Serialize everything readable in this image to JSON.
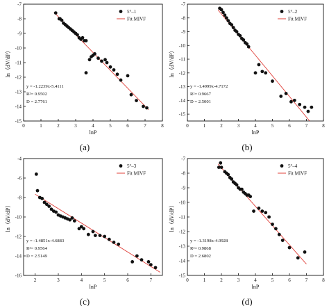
{
  "chart_data": [
    {
      "type": "scatter",
      "panel_label": "(a)",
      "xlabel": "lnP",
      "ylabel": "ln（dV/dP）",
      "xlim": [
        0,
        8
      ],
      "ylim": [
        -15,
        -7
      ],
      "x_ticks": [
        0,
        1,
        2,
        3,
        4,
        5,
        6,
        7,
        8
      ],
      "y_ticks": [
        -7,
        -8,
        -9,
        -10,
        -11,
        -12,
        -13,
        -14,
        -15
      ],
      "legend": {
        "position": "top-right",
        "points_label": "5°‒1",
        "fit_label": "Fit MIVF"
      },
      "fit": {
        "slope": -1.2239,
        "intercept": -5.4111,
        "x_range": [
          1.75,
          7.2
        ]
      },
      "annotations": [
        "y = -1.2239x-5.4111",
        "R²= 0.9502",
        "D = 2.7761"
      ],
      "series": [
        {
          "x": [
            1.85,
            2.05,
            2.1,
            2.2,
            2.3,
            2.4,
            2.5,
            2.6,
            2.7,
            2.8,
            2.9,
            3.0,
            3.1,
            3.2,
            3.3,
            3.4,
            3.5,
            3.6,
            3.6,
            3.8,
            3.9,
            4.0,
            4.1,
            4.3,
            4.5,
            4.7,
            4.8,
            5.0,
            5.2,
            5.4,
            5.6,
            6.0,
            6.2,
            6.5,
            6.9,
            7.1
          ],
          "y": [
            -7.6,
            -8.0,
            -8.0,
            -8.1,
            -8.3,
            -8.4,
            -8.5,
            -8.6,
            -8.7,
            -8.8,
            -8.9,
            -9.0,
            -9.1,
            -9.3,
            -9.4,
            -9.3,
            -9.5,
            -9.5,
            -11.7,
            -10.8,
            -10.6,
            -10.5,
            -10.4,
            -10.7,
            -10.9,
            -10.8,
            -11.0,
            -11.3,
            -11.5,
            -11.8,
            -12.2,
            -11.9,
            -13.2,
            -13.6,
            -14.0,
            -14.1
          ]
        }
      ]
    },
    {
      "type": "scatter",
      "panel_label": "(b)",
      "xlabel": "lnP",
      "ylabel": "ln（dV/dP）",
      "xlim": [
        0,
        8
      ],
      "ylim": [
        -15.5,
        -7
      ],
      "x_ticks": [
        0,
        1,
        2,
        3,
        4,
        5,
        6,
        7,
        8
      ],
      "y_ticks": [
        -7,
        -8,
        -9,
        -10,
        -11,
        -12,
        -13,
        -14,
        -15
      ],
      "legend": {
        "position": "top-right",
        "points_label": "5°‒2",
        "fit_label": "Fit MIVF"
      },
      "fit": {
        "slope": -1.4999,
        "intercept": -4.7172,
        "x_range": [
          1.8,
          7.2
        ]
      },
      "annotations": [
        "y = -1.4999x-4.7172",
        "R²= 0.9667",
        "D = 2.5001"
      ],
      "series": [
        {
          "x": [
            1.9,
            2.0,
            2.1,
            2.2,
            2.3,
            2.4,
            2.5,
            2.6,
            2.7,
            2.8,
            2.9,
            3.0,
            3.1,
            3.2,
            3.3,
            3.4,
            3.5,
            3.6,
            4.0,
            4.2,
            4.4,
            4.6,
            5.0,
            5.5,
            5.8,
            6.1,
            6.3,
            6.6,
            6.9,
            7.1,
            7.3
          ],
          "y": [
            -7.3,
            -7.4,
            -7.6,
            -7.8,
            -8.0,
            -8.2,
            -8.4,
            -8.5,
            -8.7,
            -8.9,
            -9.0,
            -9.2,
            -9.3,
            -9.5,
            -9.6,
            -9.8,
            -9.9,
            -10.1,
            -12.0,
            -11.4,
            -11.9,
            -12.0,
            -12.6,
            -13.7,
            -13.5,
            -14.1,
            -14.0,
            -14.3,
            -14.5,
            -14.8,
            -14.5
          ]
        }
      ]
    },
    {
      "type": "scatter",
      "panel_label": "(c)",
      "xlabel": "lnP",
      "ylabel": "ln（dV/dP）",
      "xlim": [
        1.5,
        7.5
      ],
      "ylim": [
        -16,
        -4
      ],
      "x_ticks": [
        2,
        3,
        4,
        5,
        6,
        7
      ],
      "y_ticks": [
        -4,
        -6,
        -8,
        -10,
        -12,
        -14,
        -16
      ],
      "legend": {
        "position": "top-right",
        "points_label": "5°‒3",
        "fit_label": "Fit MIVF"
      },
      "fit": {
        "slope": -1.4851,
        "intercept": -4.6883,
        "x_range": [
          2.0,
          7.4
        ]
      },
      "annotations": [
        "y = -1.4851x-4.6883",
        "R²= 0.9564",
        "D = 2.5149"
      ],
      "series": [
        {
          "x": [
            2.05,
            2.1,
            2.2,
            2.3,
            2.4,
            2.5,
            2.6,
            2.7,
            2.8,
            2.9,
            3.0,
            3.1,
            3.2,
            3.3,
            3.4,
            3.5,
            3.6,
            3.7,
            3.9,
            4.0,
            4.1,
            4.3,
            4.5,
            4.6,
            4.8,
            5.0,
            5.2,
            5.4,
            5.6,
            6.2,
            6.4,
            6.6,
            6.9,
            7.0,
            7.2
          ],
          "y": [
            -5.6,
            -7.3,
            -8.0,
            -8.1,
            -8.5,
            -8.7,
            -8.9,
            -9.2,
            -9.4,
            -9.5,
            -9.8,
            -9.9,
            -10.0,
            -10.1,
            -10.2,
            -10.3,
            -10.1,
            -10.4,
            -11.2,
            -11.0,
            -11.2,
            -11.8,
            -11.5,
            -11.9,
            -11.9,
            -12.0,
            -12.3,
            -12.6,
            -12.8,
            -14.6,
            -14.0,
            -14.4,
            -14.6,
            -14.9,
            -15.2
          ]
        }
      ]
    },
    {
      "type": "scatter",
      "panel_label": "(d)",
      "xlabel": "lnP",
      "ylabel": "ln（dV/dP）",
      "xlim": [
        0,
        8
      ],
      "ylim": [
        -15,
        -7
      ],
      "x_ticks": [
        0,
        1,
        2,
        3,
        4,
        5,
        6,
        7,
        8
      ],
      "y_ticks": [
        -7,
        -8,
        -9,
        -10,
        -11,
        -12,
        -13,
        -14,
        -15
      ],
      "legend": {
        "position": "top-right",
        "points_label": "5°‒4",
        "fit_label": "Fit MIVF"
      },
      "fit": {
        "slope": -1.3198,
        "intercept": -4.9928,
        "x_range": [
          1.8,
          7.0
        ]
      },
      "annotations": [
        "y = -1.3198x-4.9928",
        "R²= 0.9868",
        "D = 2.6802"
      ],
      "series": [
        {
          "x": [
            1.85,
            1.95,
            2.0,
            2.2,
            2.3,
            2.4,
            2.5,
            2.6,
            2.7,
            2.8,
            2.9,
            3.0,
            3.1,
            3.2,
            3.3,
            3.4,
            3.5,
            3.6,
            3.7,
            3.9,
            4.2,
            4.4,
            4.6,
            4.8,
            5.0,
            5.2,
            5.4,
            5.6,
            6.0,
            6.5,
            6.9
          ],
          "y": [
            -7.6,
            -7.3,
            -7.6,
            -7.9,
            -8.0,
            -8.1,
            -8.3,
            -8.4,
            -8.6,
            -8.7,
            -8.8,
            -9.0,
            -9.1,
            -9.1,
            -9.3,
            -9.4,
            -9.5,
            -9.5,
            -9.6,
            -10.6,
            -10.4,
            -10.6,
            -10.7,
            -11.0,
            -11.5,
            -11.8,
            -12.2,
            -12.6,
            -13.1,
            -13.8,
            -13.4
          ]
        }
      ]
    }
  ]
}
